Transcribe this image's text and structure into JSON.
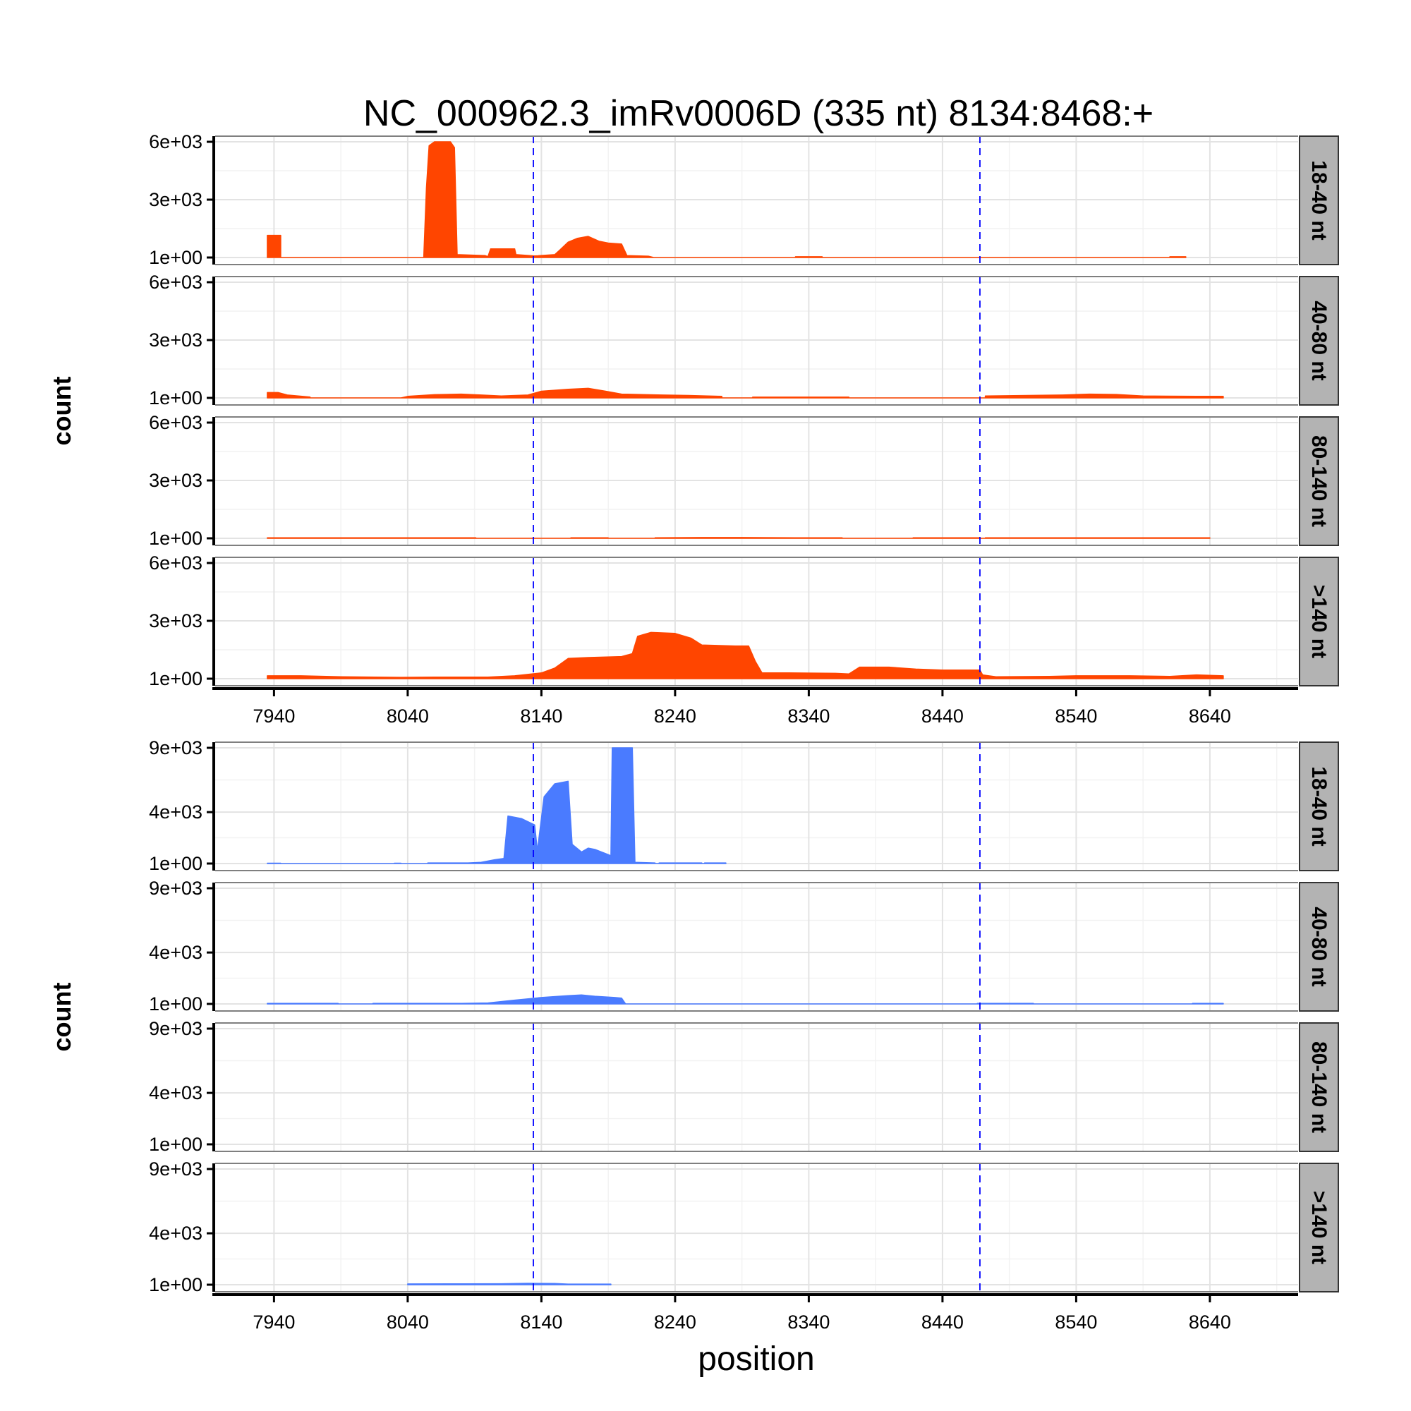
{
  "chart_data": {
    "type": "area",
    "title": "NC_000962.3_imRv0006D (335 nt) 8134:8468:+",
    "xlabel": "position",
    "ylabel": "count",
    "xlim": [
      7896,
      8706
    ],
    "x_ticks": [
      7940,
      8040,
      8140,
      8240,
      8340,
      8440,
      8540,
      8640
    ],
    "x_tick_labels": [
      "7940",
      "8040",
      "8140",
      "8240",
      "8340",
      "8440",
      "8540",
      "8640"
    ],
    "feature_bounds": [
      8134,
      8468
    ],
    "grid": true,
    "colors": {
      "top_strand": "#FF4500",
      "bottom_strand": "#4A7BFF",
      "guide_line": "#0000FF",
      "strip_bg": "#B3B3B3"
    },
    "blocks": [
      {
        "id": "top",
        "color": "#FF4500",
        "ylim": [
          1,
          6000
        ],
        "y_ticks": [
          1,
          3000,
          6000
        ],
        "y_tick_labels": [
          "1e+00",
          "3e+03",
          "6e+03"
        ],
        "panels": [
          {
            "label": "18-40 nt",
            "series": [
              [
                7935,
                0
              ],
              [
                7935,
                1150
              ],
              [
                7945,
                1150
              ],
              [
                7945,
                0
              ],
              [
                8052,
                0
              ],
              [
                8054,
                3600
              ],
              [
                8056,
                5800
              ],
              [
                8060,
                6000
              ],
              [
                8072,
                6000
              ],
              [
                8075,
                5700
              ],
              [
                8077,
                150
              ],
              [
                8098,
                100
              ],
              [
                8100,
                50
              ],
              [
                8102,
                450
              ],
              [
                8120,
                450
              ],
              [
                8121,
                150
              ],
              [
                8135,
                80
              ],
              [
                8150,
                150
              ],
              [
                8154,
                400
              ],
              [
                8160,
                800
              ],
              [
                8167,
                1000
              ],
              [
                8175,
                1100
              ],
              [
                8183,
                850
              ],
              [
                8190,
                750
              ],
              [
                8200,
                700
              ],
              [
                8204,
                100
              ],
              [
                8220,
                70
              ],
              [
                8224,
                0
              ],
              [
                8330,
                0
              ],
              [
                8330,
                40
              ],
              [
                8350,
                40
              ],
              [
                8350,
                0
              ],
              [
                8610,
                0
              ],
              [
                8610,
                40
              ],
              [
                8622,
                40
              ],
              [
                8622,
                0
              ]
            ]
          },
          {
            "label": "40-80 nt",
            "series": [
              [
                7935,
                0
              ],
              [
                7935,
                280
              ],
              [
                7943,
                280
              ],
              [
                7950,
                150
              ],
              [
                7967,
                50
              ],
              [
                7967,
                0
              ],
              [
                8035,
                0
              ],
              [
                8040,
                80
              ],
              [
                8060,
                170
              ],
              [
                8080,
                200
              ],
              [
                8095,
                150
              ],
              [
                8110,
                100
              ],
              [
                8130,
                150
              ],
              [
                8140,
                350
              ],
              [
                8160,
                450
              ],
              [
                8175,
                500
              ],
              [
                8188,
                350
              ],
              [
                8200,
                200
              ],
              [
                8230,
                150
              ],
              [
                8250,
                130
              ],
              [
                8275,
                80
              ],
              [
                8275,
                0
              ],
              [
                8298,
                0
              ],
              [
                8298,
                40
              ],
              [
                8370,
                40
              ],
              [
                8370,
                0
              ],
              [
                8472,
                0
              ],
              [
                8472,
                100
              ],
              [
                8530,
                150
              ],
              [
                8550,
                200
              ],
              [
                8570,
                180
              ],
              [
                8590,
                100
              ],
              [
                8630,
                80
              ],
              [
                8650,
                80
              ],
              [
                8650,
                0
              ]
            ]
          },
          {
            "label": "80-140 nt",
            "series": [
              [
                7935,
                0
              ],
              [
                7935,
                30
              ],
              [
                8091,
                30
              ],
              [
                8091,
                0
              ],
              [
                8162,
                0
              ],
              [
                8162,
                30
              ],
              [
                8190,
                30
              ],
              [
                8190,
                0
              ],
              [
                8225,
                0
              ],
              [
                8225,
                30
              ],
              [
                8260,
                40
              ],
              [
                8290,
                40
              ],
              [
                8330,
                30
              ],
              [
                8365,
                30
              ],
              [
                8365,
                0
              ],
              [
                8418,
                0
              ],
              [
                8418,
                30
              ],
              [
                8468,
                30
              ],
              [
                8468,
                0
              ],
              [
                8472,
                0
              ],
              [
                8472,
                30
              ],
              [
                8640,
                30
              ],
              [
                8640,
                0
              ]
            ]
          },
          {
            "label": ">140 nt",
            "series": [
              [
                7935,
                0
              ],
              [
                7935,
                150
              ],
              [
                7960,
                150
              ],
              [
                7990,
                100
              ],
              [
                8035,
                70
              ],
              [
                8060,
                80
              ],
              [
                8100,
                80
              ],
              [
                8120,
                150
              ],
              [
                8140,
                300
              ],
              [
                8150,
                550
              ],
              [
                8160,
                1050
              ],
              [
                8175,
                1100
              ],
              [
                8200,
                1150
              ],
              [
                8208,
                1300
              ],
              [
                8212,
                2200
              ],
              [
                8222,
                2400
              ],
              [
                8240,
                2350
              ],
              [
                8252,
                2100
              ],
              [
                8260,
                1750
              ],
              [
                8285,
                1700
              ],
              [
                8295,
                1700
              ],
              [
                8300,
                900
              ],
              [
                8305,
                300
              ],
              [
                8325,
                300
              ],
              [
                8360,
                280
              ],
              [
                8370,
                250
              ],
              [
                8378,
                600
              ],
              [
                8400,
                600
              ],
              [
                8420,
                500
              ],
              [
                8440,
                450
              ],
              [
                8468,
                450
              ],
              [
                8470,
                200
              ],
              [
                8480,
                100
              ],
              [
                8520,
                120
              ],
              [
                8540,
                150
              ],
              [
                8580,
                150
              ],
              [
                8610,
                120
              ],
              [
                8630,
                200
              ],
              [
                8650,
                150
              ],
              [
                8650,
                0
              ]
            ]
          }
        ]
      },
      {
        "id": "bottom",
        "color": "#4A7BFF",
        "ylim": [
          1,
          9000
        ],
        "y_ticks": [
          1,
          4000,
          9000
        ],
        "y_tick_labels": [
          "1e+00",
          "4e+03",
          "9e+03"
        ],
        "panels": [
          {
            "label": "18-40 nt",
            "series": [
              [
                7935,
                0
              ],
              [
                7935,
                30
              ],
              [
                7945,
                30
              ],
              [
                7945,
                0
              ],
              [
                8030,
                0
              ],
              [
                8030,
                30
              ],
              [
                8035,
                30
              ],
              [
                8035,
                0
              ],
              [
                8055,
                0
              ],
              [
                8055,
                50
              ],
              [
                8085,
                50
              ],
              [
                8095,
                100
              ],
              [
                8105,
                300
              ],
              [
                8112,
                400
              ],
              [
                8115,
                3700
              ],
              [
                8125,
                3500
              ],
              [
                8135,
                3000
              ],
              [
                8137,
                1000
              ],
              [
                8142,
                5200
              ],
              [
                8150,
                6200
              ],
              [
                8160,
                6400
              ],
              [
                8163,
                1500
              ],
              [
                8170,
                900
              ],
              [
                8175,
                1200
              ],
              [
                8180,
                1100
              ],
              [
                8190,
                700
              ],
              [
                8192,
                600
              ],
              [
                8193,
                9000
              ],
              [
                8208,
                9000
              ],
              [
                8210,
                100
              ],
              [
                8225,
                50
              ],
              [
                8225,
                0
              ],
              [
                8228,
                0
              ],
              [
                8228,
                50
              ],
              [
                8260,
                50
              ],
              [
                8260,
                0
              ],
              [
                8262,
                0
              ],
              [
                8262,
                50
              ],
              [
                8278,
                50
              ],
              [
                8278,
                0
              ]
            ]
          },
          {
            "label": "40-80 nt",
            "series": [
              [
                7935,
                0
              ],
              [
                7935,
                40
              ],
              [
                7988,
                40
              ],
              [
                7988,
                0
              ],
              [
                8014,
                0
              ],
              [
                8014,
                40
              ],
              [
                8080,
                40
              ],
              [
                8100,
                80
              ],
              [
                8120,
                300
              ],
              [
                8140,
                500
              ],
              [
                8160,
                650
              ],
              [
                8170,
                700
              ],
              [
                8180,
                600
              ],
              [
                8195,
                500
              ],
              [
                8200,
                450
              ],
              [
                8203,
                0
              ],
              [
                8466,
                0
              ],
              [
                8466,
                40
              ],
              [
                8508,
                40
              ],
              [
                8508,
                0
              ],
              [
                8627,
                0
              ],
              [
                8627,
                40
              ],
              [
                8650,
                40
              ],
              [
                8650,
                0
              ]
            ]
          },
          {
            "label": "80-140 nt",
            "series": []
          },
          {
            "label": ">140 nt",
            "series": [
              [
                8040,
                0
              ],
              [
                8040,
                60
              ],
              [
                8080,
                70
              ],
              [
                8110,
                80
              ],
              [
                8130,
                110
              ],
              [
                8150,
                100
              ],
              [
                8160,
                50
              ],
              [
                8192,
                50
              ],
              [
                8192,
                0
              ]
            ]
          }
        ]
      }
    ]
  }
}
